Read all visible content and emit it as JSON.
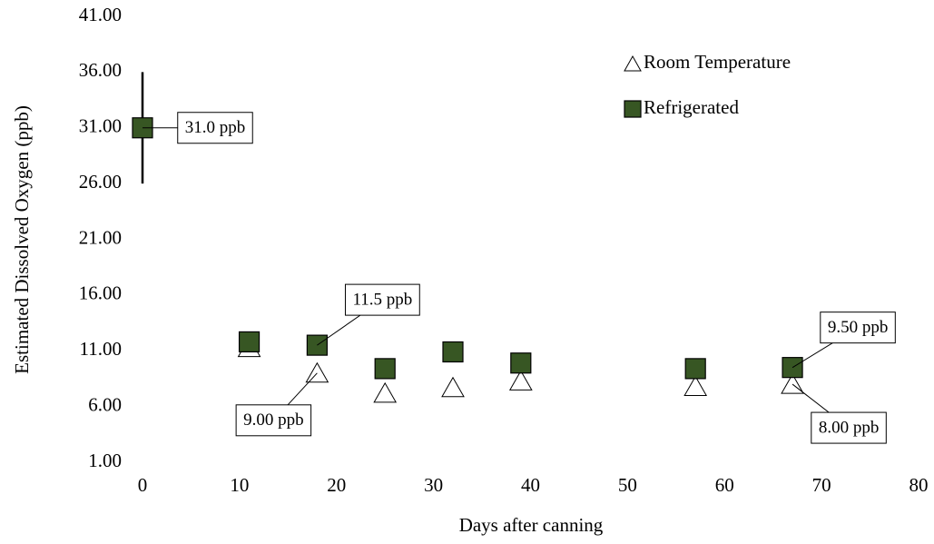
{
  "chart_data": {
    "type": "scatter",
    "x_label": "Days after canning",
    "y_label": "Estimated Dissolved Oxygen (ppb)",
    "xlim": [
      0,
      80
    ],
    "xticks": [
      0,
      10,
      20,
      30,
      40,
      50,
      60,
      70,
      80
    ],
    "ylim": [
      1,
      41
    ],
    "yticks": [
      {
        "value": 1,
        "label": "1.00"
      },
      {
        "value": 6,
        "label": "6.00"
      },
      {
        "value": 11,
        "label": "11.00"
      },
      {
        "value": 16,
        "label": "16.00"
      },
      {
        "value": 21,
        "label": "21.00"
      },
      {
        "value": 26,
        "label": "26.00"
      },
      {
        "value": 31,
        "label": "31.00"
      },
      {
        "value": 36,
        "label": "36.00"
      },
      {
        "value": 41,
        "label": "41.00"
      }
    ],
    "legend": "top-right",
    "series": [
      {
        "name": "Room Temperature",
        "marker": "triangle",
        "color": "#ffffff",
        "x": [
          11,
          18,
          25,
          32,
          39,
          57,
          67
        ],
        "values": [
          11.3,
          9.0,
          7.2,
          7.7,
          8.3,
          7.8,
          8.0
        ],
        "value_labels": [
          null,
          "9.00 ppb",
          null,
          null,
          null,
          null,
          "8.00 ppb"
        ]
      },
      {
        "name": "Refrigerated",
        "marker": "square",
        "color": "#375623",
        "x": [
          0,
          11,
          18,
          25,
          32,
          39,
          57,
          67
        ],
        "values": [
          31.0,
          11.8,
          11.5,
          9.4,
          10.9,
          9.9,
          9.4,
          9.5
        ],
        "errors": [
          5,
          null,
          null,
          null,
          null,
          null,
          null,
          null
        ],
        "value_labels": [
          "31.0 ppb",
          null,
          "11.5 ppb",
          null,
          null,
          null,
          null,
          "9.50 ppb"
        ]
      }
    ]
  }
}
